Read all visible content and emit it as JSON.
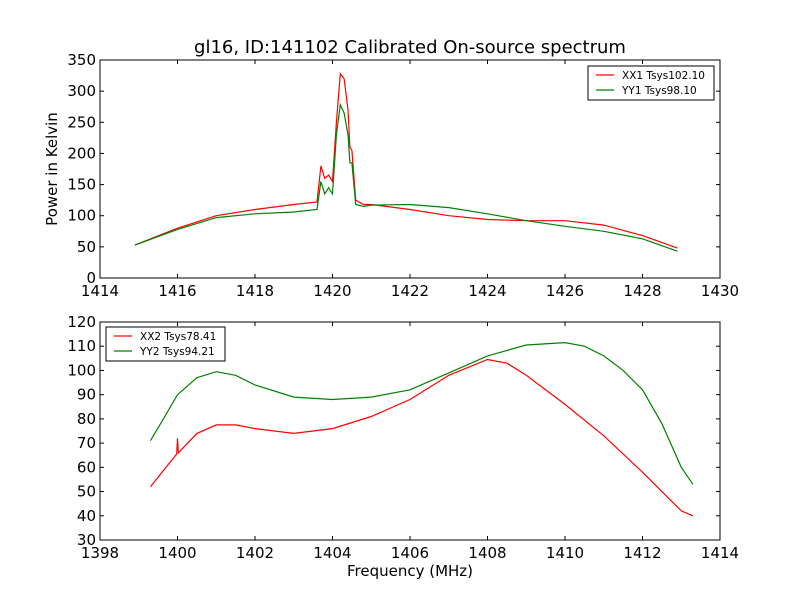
{
  "chart_data": [
    {
      "type": "line",
      "title": "gl16, ID:141102 Calibrated On-source spectrum",
      "xlabel": "",
      "ylabel": "Power in Kelvin",
      "xlim": [
        1414,
        1430
      ],
      "ylim": [
        0,
        350
      ],
      "xticks": [
        1414,
        1416,
        1418,
        1420,
        1422,
        1424,
        1426,
        1428,
        1430
      ],
      "yticks": [
        0,
        50,
        100,
        150,
        200,
        250,
        300,
        350
      ],
      "legend": "top-right",
      "series": [
        {
          "name": "XX1 Tsys102.10",
          "color": "#ff0000",
          "x": [
            1414.9,
            1416,
            1417,
            1418,
            1419,
            1419.6,
            1419.7,
            1419.8,
            1419.9,
            1420.0,
            1420.1,
            1420.2,
            1420.3,
            1420.4,
            1420.45,
            1420.5,
            1420.6,
            1420.8,
            1421,
            1422,
            1423,
            1424,
            1425,
            1426,
            1427,
            1428,
            1428.9
          ],
          "y": [
            53,
            80,
            100,
            110,
            118,
            122,
            180,
            160,
            165,
            155,
            250,
            328,
            320,
            270,
            210,
            205,
            125,
            118,
            118,
            110,
            100,
            94,
            92,
            92,
            85,
            68,
            48
          ]
        },
        {
          "name": "YY1 Tsys98.10",
          "color": "#008000",
          "x": [
            1414.9,
            1416,
            1417,
            1418,
            1419,
            1419.6,
            1419.7,
            1419.8,
            1419.9,
            1420.0,
            1420.1,
            1420.2,
            1420.3,
            1420.4,
            1420.45,
            1420.5,
            1420.6,
            1420.8,
            1421,
            1422,
            1423,
            1424,
            1425,
            1426,
            1427,
            1428,
            1428.9
          ],
          "y": [
            53,
            78,
            97,
            103,
            106,
            110,
            155,
            135,
            145,
            135,
            230,
            278,
            265,
            230,
            185,
            185,
            118,
            115,
            117,
            118,
            113,
            103,
            92,
            83,
            75,
            63,
            43
          ]
        }
      ]
    },
    {
      "type": "line",
      "title": "",
      "xlabel": "Frequency (MHz)",
      "ylabel": "",
      "xlim": [
        1398,
        1414
      ],
      "ylim": [
        30,
        120
      ],
      "xticks": [
        1398,
        1400,
        1402,
        1404,
        1406,
        1408,
        1410,
        1412,
        1414
      ],
      "yticks": [
        30,
        40,
        50,
        60,
        70,
        80,
        90,
        100,
        110,
        120
      ],
      "legend": "top-left",
      "series": [
        {
          "name": "XX2 Tsys78.41",
          "color": "#ff0000",
          "x": [
            1399.3,
            1399.6,
            1399.98,
            1400.0,
            1400.02,
            1400.5,
            1401,
            1401.5,
            1402,
            1403,
            1404,
            1405,
            1406,
            1407,
            1408,
            1408.5,
            1409,
            1410,
            1411,
            1412,
            1413,
            1413.3
          ],
          "y": [
            52,
            58,
            65.5,
            72,
            66,
            74,
            77.5,
            77.5,
            76,
            74,
            76,
            81,
            88,
            98,
            104.5,
            103,
            98,
            86,
            73,
            58,
            42,
            40
          ]
        },
        {
          "name": "YY2 Tsys94.21",
          "color": "#008000",
          "x": [
            1399.3,
            1399.6,
            1400,
            1400.5,
            1401,
            1401.5,
            1402,
            1403,
            1404,
            1405,
            1406,
            1407,
            1408,
            1409,
            1410,
            1410.5,
            1411,
            1411.5,
            1412,
            1412.5,
            1413,
            1413.3
          ],
          "y": [
            71,
            79,
            90,
            97,
            99.5,
            98,
            94,
            89,
            88,
            89,
            92,
            99,
            106,
            110.5,
            111.5,
            110,
            106,
            100,
            92,
            78,
            60,
            53
          ]
        }
      ]
    }
  ]
}
